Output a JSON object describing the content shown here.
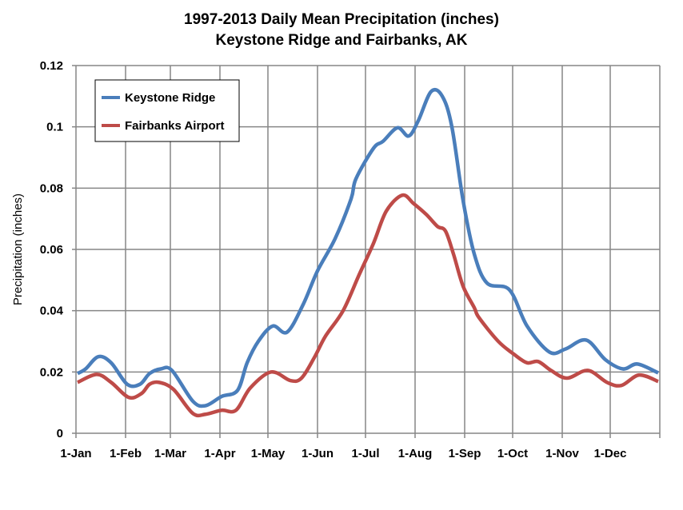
{
  "chart_data": {
    "type": "line",
    "title": [
      "1997-2013 Daily Mean Precipitation (inches)",
      "Keystone Ridge and Fairbanks, AK"
    ],
    "xlabel": "",
    "ylabel": "Precipitation (inches)",
    "ylim": [
      0,
      0.12
    ],
    "yticks": [
      "0",
      "0.02",
      "0.04",
      "0.06",
      "0.08",
      "0.1",
      "0.12"
    ],
    "xticks": [
      "1-Jan",
      "1-Feb",
      "1-Mar",
      "1-Apr",
      "1-May",
      "1-Jun",
      "1-Jul",
      "1-Aug",
      "1-Sep",
      "1-Oct",
      "1-Nov",
      "1-Dec"
    ],
    "grid": true,
    "legend_position": "top-left",
    "series": [
      {
        "name": "Keystone Ridge",
        "color": "#4a7ebb",
        "x": [
          "2-Jan",
          "7-Jan",
          "15-Jan",
          "23-Jan",
          "2-Feb",
          "10-Feb",
          "16-Feb",
          "23-Feb",
          "2-Mar",
          "15-Mar",
          "23-Mar",
          "2-Apr",
          "12-Apr",
          "18-Apr",
          "25-Apr",
          "4-May",
          "13-May",
          "23-May",
          "1-Jun",
          "12-Jun",
          "22-Jun",
          "25-Jun",
          "6-Jul",
          "12-Jul",
          "21-Jul",
          "28-Jul",
          "3-Aug",
          "11-Aug",
          "18-Aug",
          "24-Aug",
          "31-Aug",
          "7-Sep",
          "15-Sep",
          "29-Sep",
          "10-Oct",
          "24-Oct",
          "3-Nov",
          "16-Nov",
          "28-Nov",
          "9-Dec",
          "18-Dec",
          "31-Dec"
        ],
        "values": [
          0.0195,
          0.021,
          0.025,
          0.023,
          0.016,
          0.016,
          0.0195,
          0.021,
          0.0205,
          0.0105,
          0.009,
          0.012,
          0.014,
          0.023,
          0.03,
          0.035,
          0.033,
          0.042,
          0.053,
          0.0635,
          0.0765,
          0.083,
          0.093,
          0.0953,
          0.0997,
          0.097,
          0.102,
          0.1115,
          0.11,
          0.1,
          0.076,
          0.0585,
          0.049,
          0.0468,
          0.035,
          0.0265,
          0.0275,
          0.0304,
          0.024,
          0.021,
          0.0226,
          0.0197
        ]
      },
      {
        "name": "Fairbanks Airport",
        "color": "#be4b48",
        "x": [
          "2-Jan",
          "14-Jan",
          "23-Jan",
          "3-Feb",
          "11-Feb",
          "16-Feb",
          "22-Feb",
          "3-Mar",
          "15-Mar",
          "23-Mar",
          "2-Apr",
          "11-Apr",
          "20-Apr",
          "3-May",
          "15-May",
          "22-May",
          "30-May",
          "6-Jun",
          "17-Jun",
          "27-Jun",
          "6-Jul",
          "14-Jul",
          "24-Jul",
          "31-Jul",
          "8-Aug",
          "15-Aug",
          "20-Aug",
          "25-Aug",
          "31-Aug",
          "7-Sep",
          "10-Sep",
          "22-Sep",
          "2-Oct",
          "10-Oct",
          "17-Oct",
          "25-Oct",
          "4-Nov",
          "17-Nov",
          "29-Nov",
          "8-Dec",
          "19-Dec",
          "31-Dec"
        ],
        "values": [
          0.0166,
          0.0192,
          0.0166,
          0.0117,
          0.013,
          0.016,
          0.0166,
          0.0143,
          0.0065,
          0.0062,
          0.0075,
          0.0075,
          0.0148,
          0.02,
          0.0172,
          0.018,
          0.0247,
          0.0317,
          0.04,
          0.0517,
          0.062,
          0.0725,
          0.0777,
          0.075,
          0.0714,
          0.0675,
          0.066,
          0.0585,
          0.048,
          0.041,
          0.0377,
          0.03,
          0.0257,
          0.023,
          0.0234,
          0.0205,
          0.018,
          0.0205,
          0.0166,
          0.0156,
          0.019,
          0.0169
        ]
      }
    ]
  }
}
